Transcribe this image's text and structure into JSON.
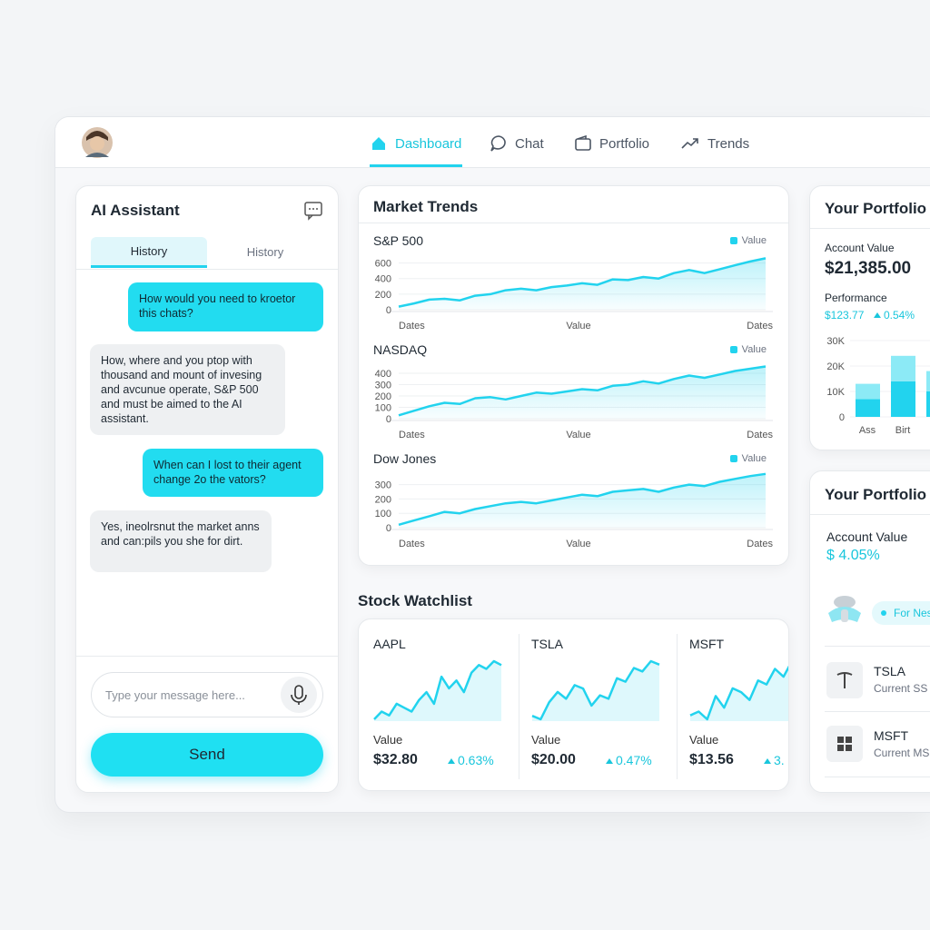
{
  "nav": {
    "items": [
      "Dashboard",
      "Chat",
      "Portfolio",
      "Trends"
    ]
  },
  "assistant": {
    "title": "AI Assistant",
    "tabs": [
      "History",
      "History"
    ],
    "messages": [
      "How would you need to kroetor this chats?",
      "How, where and you ptop with thousand and mount of invesing and avcunue operate, S&P 500 and must be aimed to the AI assistant.",
      "When can I lost to their agent change 2o the vators?",
      "Yes, ineolrsnut the market anns and can:pils you she for dirt."
    ],
    "input_placeholder": "Type your message here...",
    "send": "Send"
  },
  "market_trends": {
    "title": "Market Trends",
    "color": "#22d3ee",
    "charts": [
      {
        "name": "S&P 500",
        "legend": "Value",
        "ylim": [
          0,
          700
        ],
        "yticks": [
          0,
          200,
          400,
          600
        ],
        "x_labels": [
          "Dates",
          "Value",
          "Dates"
        ],
        "values": [
          40,
          80,
          130,
          140,
          120,
          180,
          200,
          250,
          270,
          250,
          290,
          310,
          340,
          320,
          390,
          380,
          420,
          400,
          470,
          510,
          470,
          520,
          570,
          620,
          660
        ]
      },
      {
        "name": "NASDAQ",
        "legend": "Value",
        "ylim": [
          0,
          480
        ],
        "yticks": [
          0,
          100,
          200,
          300,
          400
        ],
        "x_labels": [
          "Dates",
          "Value",
          "Dates"
        ],
        "values": [
          30,
          70,
          110,
          140,
          130,
          180,
          190,
          170,
          200,
          230,
          220,
          240,
          260,
          250,
          290,
          300,
          330,
          310,
          350,
          380,
          360,
          390,
          420,
          440,
          460
        ]
      },
      {
        "name": "Dow Jones",
        "legend": "Value",
        "ylim": [
          0,
          380
        ],
        "yticks": [
          0,
          100,
          200,
          300
        ],
        "x_labels": [
          "Dates",
          "Value",
          "Dates"
        ],
        "values": [
          20,
          50,
          80,
          110,
          100,
          130,
          150,
          170,
          180,
          170,
          190,
          210,
          230,
          220,
          250,
          260,
          270,
          250,
          280,
          300,
          290,
          320,
          340,
          360,
          375
        ]
      }
    ]
  },
  "watchlist": {
    "title": "Stock Watchlist",
    "color": "#22d3ee",
    "items": [
      {
        "symbol": "AAPL",
        "label": "Value",
        "price": "$32.80",
        "change": "0.63%",
        "values": [
          20,
          30,
          25,
          40,
          35,
          30,
          45,
          55,
          40,
          75,
          60,
          70,
          55,
          80,
          90,
          85,
          95,
          90
        ]
      },
      {
        "symbol": "TSLA",
        "label": "Value",
        "price": "$20.00",
        "change": "0.47%",
        "values": [
          15,
          10,
          35,
          50,
          40,
          60,
          55,
          30,
          45,
          40,
          70,
          65,
          85,
          80,
          95,
          90
        ]
      },
      {
        "symbol": "MSFT",
        "label": "Value",
        "price": "$13.56",
        "change": "3.",
        "values": [
          20,
          25,
          15,
          45,
          30,
          55,
          50,
          40,
          65,
          60,
          80,
          70,
          90,
          85,
          75,
          90
        ]
      }
    ]
  },
  "portfolio": {
    "title": "Your Portfolio",
    "account_label": "Account Value",
    "account_value": "$21,385.00",
    "performance_label": "Performance",
    "performance_value": "$123.77",
    "performance_change": "0.54%",
    "chart": {
      "type": "bar",
      "stacked": true,
      "categories": [
        "Ass",
        "Birt",
        null
      ],
      "ylim": [
        0,
        30000
      ],
      "yticks": [
        0,
        {
          "value": 10000,
          "label": "10K"
        },
        {
          "value": 20000,
          "label": "20K"
        },
        {
          "value": 30000,
          "label": "30K"
        }
      ],
      "series": [
        {
          "color": "#22d3ee",
          "values": [
            7000,
            14000,
            10000
          ]
        },
        {
          "color": "#8ceaf6",
          "values": [
            6000,
            10000,
            8000
          ]
        }
      ]
    }
  },
  "portfolio_2": {
    "title": "Your Portfolio",
    "account_label": "Account Value",
    "account_value": "$ 4.05%",
    "badge": "For Nesi",
    "holdings": [
      {
        "symbol": "TSLA",
        "subtitle": "Current SS"
      },
      {
        "symbol": "MSFT",
        "subtitle": "Current MS"
      }
    ]
  }
}
